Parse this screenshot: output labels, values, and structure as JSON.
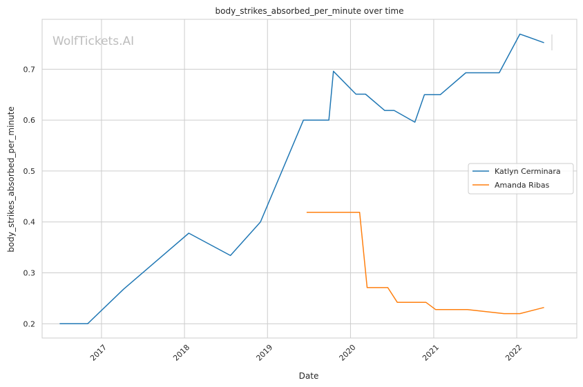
{
  "chart_data": {
    "type": "line",
    "title": "body_strikes_absorbed_per_minute over time",
    "xlabel": "Date",
    "ylabel": "body_strikes_absorbed_per_minute",
    "watermark": "WolfTickets.AI",
    "xlim": [
      "2016-04-15",
      "2022-09-22"
    ],
    "ylim": [
      0.172,
      0.798
    ],
    "x_ticks": [
      "2017",
      "2018",
      "2019",
      "2020",
      "2021",
      "2022"
    ],
    "y_ticks": [
      "0.2",
      "0.3",
      "0.4",
      "0.5",
      "0.6",
      "0.7"
    ],
    "grid": true,
    "legend_position": "right",
    "series": [
      {
        "name": "Katlyn Cerminara",
        "color": "#1f77b4",
        "points": [
          [
            "2016-07-01",
            0.2
          ],
          [
            "2016-11-01",
            0.2
          ],
          [
            "2017-04-08",
            0.268
          ],
          [
            "2018-01-20",
            0.378
          ],
          [
            "2018-07-22",
            0.334
          ],
          [
            "2018-12-01",
            0.4
          ],
          [
            "2019-06-08",
            0.6
          ],
          [
            "2019-09-28",
            0.6
          ],
          [
            "2019-10-18",
            0.696
          ],
          [
            "2020-01-25",
            0.651
          ],
          [
            "2020-03-07",
            0.651
          ],
          [
            "2020-05-30",
            0.619
          ],
          [
            "2020-07-11",
            0.619
          ],
          [
            "2020-10-10",
            0.596
          ],
          [
            "2020-11-21",
            0.65
          ],
          [
            "2021-01-30",
            0.65
          ],
          [
            "2021-05-22",
            0.693
          ],
          [
            "2021-10-16",
            0.693
          ],
          [
            "2022-01-15",
            0.769
          ],
          [
            "2022-05-01",
            0.752
          ]
        ]
      },
      {
        "name": "Amanda Ribas",
        "color": "#ff7f0e",
        "points": [
          [
            "2019-06-22",
            0.419
          ],
          [
            "2019-10-12",
            0.419
          ],
          [
            "2020-02-10",
            0.419
          ],
          [
            "2020-03-14",
            0.271
          ],
          [
            "2020-06-13",
            0.271
          ],
          [
            "2020-07-25",
            0.242
          ],
          [
            "2020-11-28",
            0.242
          ],
          [
            "2021-01-09",
            0.228
          ],
          [
            "2021-05-29",
            0.228
          ],
          [
            "2021-11-06",
            0.22
          ],
          [
            "2022-01-15",
            0.22
          ],
          [
            "2022-05-01",
            0.232
          ]
        ]
      }
    ]
  }
}
